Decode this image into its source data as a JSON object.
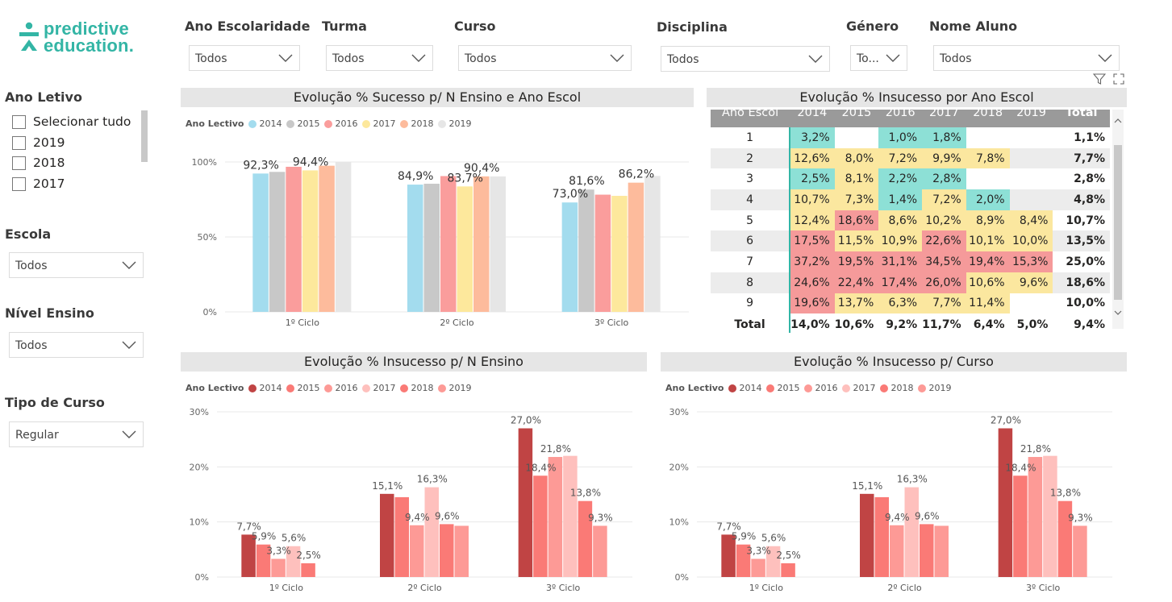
{
  "logo": {
    "line1": "predictive",
    "line2": "education."
  },
  "top_filters": [
    {
      "label": "Ano Escolaridade",
      "value": "Todos"
    },
    {
      "label": "Turma",
      "value": "Todos"
    },
    {
      "label": "Curso",
      "value": "Todos"
    },
    {
      "label": "Disciplina",
      "value": "Todos"
    },
    {
      "label": "Género",
      "value": "To..."
    },
    {
      "label": "Nome Aluno",
      "value": "Todos"
    }
  ],
  "sidebar": {
    "ano_letivo": {
      "label": "Ano Letivo",
      "items": [
        "Selecionar tudo",
        "2019",
        "2018",
        "2017"
      ]
    },
    "escola": {
      "label": "Escola",
      "value": "Todos"
    },
    "nivel_ensino": {
      "label": "Nível Ensino",
      "value": "Todos"
    },
    "tipo_curso": {
      "label": "Tipo de Curso",
      "value": "Regular"
    }
  },
  "colors": {
    "accent": "#33b5a5",
    "success_palette": [
      "#a3dcee",
      "#c8c8c8",
      "#fa9d9c",
      "#fde89c",
      "#fdbb9c",
      "#e6e6e6"
    ],
    "insucesso_palette": [
      "#c04444",
      "#fa7a76",
      "#fd9a96",
      "#fec0bd",
      "#fa7a76",
      "#fd9a96"
    ],
    "cell_low": "#8de0d6",
    "cell_mid": "#fbe79f",
    "cell_high": "#f59a9a"
  },
  "chart_sucesso": {
    "title": "Evolução % Sucesso p/ N Ensino e Ano Escol",
    "legend_title": "Ano Lectivo",
    "chart_data": {
      "type": "bar",
      "categories": [
        "1º Ciclo",
        "2º Ciclo",
        "3º Ciclo"
      ],
      "series": [
        {
          "name": "2014",
          "values": [
            92.3,
            84.9,
            73.0
          ]
        },
        {
          "name": "2015",
          "values": [
            93.4,
            85.5,
            81.6
          ]
        },
        {
          "name": "2016",
          "values": [
            96.8,
            90.6,
            78.2
          ]
        },
        {
          "name": "2017",
          "values": [
            94.4,
            83.7,
            77.4
          ]
        },
        {
          "name": "2018",
          "values": [
            97.5,
            90.4,
            86.2
          ]
        },
        {
          "name": "2019",
          "values": [
            100.0,
            90.4,
            90.7
          ]
        }
      ],
      "labels": [
        {
          "cat": 0,
          "series": 0,
          "text": "92,3%"
        },
        {
          "cat": 0,
          "series": 3,
          "text": "94,4%"
        },
        {
          "cat": 1,
          "series": 0,
          "text": "84,9%"
        },
        {
          "cat": 1,
          "series": 3,
          "text": "83,7%"
        },
        {
          "cat": 1,
          "series": 4,
          "text": "90,4%"
        },
        {
          "cat": 2,
          "series": 0,
          "text": "73,0%"
        },
        {
          "cat": 2,
          "series": 1,
          "text": "81,6%"
        },
        {
          "cat": 2,
          "series": 4,
          "text": "86,2%"
        }
      ],
      "yticks": [
        "0%",
        "50%",
        "100%"
      ],
      "ylim": [
        0,
        100
      ]
    }
  },
  "matrix": {
    "title": "Evolução % Insucesso por Ano Escol",
    "headers": [
      "Ano Escol",
      "2014",
      "2015",
      "2016",
      "2017",
      "2018",
      "2019",
      "Total"
    ],
    "rows": [
      {
        "label": "1",
        "cells": [
          "3,2%",
          "",
          "1,0%",
          "1,8%",
          "",
          ""
        ],
        "total": "1,1%"
      },
      {
        "label": "2",
        "cells": [
          "12,6%",
          "8,0%",
          "7,2%",
          "9,9%",
          "7,8%",
          ""
        ],
        "total": "7,7%"
      },
      {
        "label": "3",
        "cells": [
          "2,5%",
          "8,1%",
          "2,2%",
          "2,8%",
          "",
          ""
        ],
        "total": "2,8%"
      },
      {
        "label": "4",
        "cells": [
          "10,7%",
          "7,3%",
          "1,4%",
          "7,2%",
          "2,0%",
          ""
        ],
        "total": "4,8%"
      },
      {
        "label": "5",
        "cells": [
          "12,4%",
          "18,6%",
          "8,6%",
          "10,2%",
          "8,9%",
          "8,4%"
        ],
        "total": "10,7%"
      },
      {
        "label": "6",
        "cells": [
          "17,5%",
          "11,5%",
          "10,9%",
          "22,6%",
          "10,1%",
          "10,0%"
        ],
        "total": "13,5%"
      },
      {
        "label": "7",
        "cells": [
          "37,2%",
          "19,5%",
          "31,1%",
          "34,5%",
          "19,4%",
          "15,3%"
        ],
        "total": "25,0%"
      },
      {
        "label": "8",
        "cells": [
          "24,6%",
          "22,4%",
          "17,4%",
          "26,0%",
          "10,6%",
          "9,6%"
        ],
        "total": "18,6%"
      },
      {
        "label": "9",
        "cells": [
          "19,6%",
          "13,7%",
          "6,3%",
          "7,7%",
          "11,4%",
          ""
        ],
        "total": "10,0%"
      }
    ],
    "total_row": {
      "label": "Total",
      "cells": [
        "14,0%",
        "10,6%",
        "9,2%",
        "11,7%",
        "6,4%",
        "5,0%"
      ],
      "total": "9,4%"
    },
    "cell_colors": [
      [
        "low",
        "",
        "low",
        "low",
        "",
        ""
      ],
      [
        "mid",
        "mid",
        "mid",
        "mid",
        "mid",
        ""
      ],
      [
        "low",
        "mid",
        "low",
        "low",
        "",
        ""
      ],
      [
        "mid",
        "mid",
        "low",
        "mid",
        "low",
        ""
      ],
      [
        "mid",
        "high",
        "mid",
        "mid",
        "mid",
        "mid"
      ],
      [
        "high",
        "mid",
        "mid",
        "high",
        "mid",
        "mid"
      ],
      [
        "high",
        "high",
        "high",
        "high",
        "high",
        "high"
      ],
      [
        "high",
        "high",
        "high",
        "high",
        "mid",
        "mid"
      ],
      [
        "high",
        "mid",
        "mid",
        "mid",
        "mid",
        ""
      ]
    ]
  },
  "chart_insucesso_nensino": {
    "title": "Evolução % Insucesso p/ N Ensino",
    "legend_title": "Ano Lectivo",
    "chart_data": {
      "type": "bar",
      "categories": [
        "1º Ciclo",
        "2º Ciclo",
        "3º Ciclo"
      ],
      "series": [
        {
          "name": "2014",
          "values": [
            7.7,
            15.1,
            27.0
          ]
        },
        {
          "name": "2015",
          "values": [
            5.9,
            14.5,
            18.4
          ]
        },
        {
          "name": "2016",
          "values": [
            3.3,
            9.4,
            21.8
          ]
        },
        {
          "name": "2017",
          "values": [
            5.6,
            16.3,
            22.0
          ]
        },
        {
          "name": "2018",
          "values": [
            2.5,
            9.6,
            13.8
          ]
        },
        {
          "name": "2019",
          "values": [
            0,
            9.3,
            9.3
          ]
        }
      ],
      "labels": [
        [
          "7,7%",
          "5,9%",
          "3,3%",
          "5,6%",
          "2,5%",
          ""
        ],
        [
          "15,1%",
          "",
          "9,4%",
          "16,3%",
          "9,6%",
          ""
        ],
        [
          "27,0%",
          "18,4%",
          "21,8%",
          "",
          "13,8%",
          "9,3%"
        ]
      ],
      "yticks": [
        "0%",
        "10%",
        "20%",
        "30%"
      ],
      "ylim": [
        0,
        30
      ]
    }
  },
  "chart_insucesso_curso": {
    "title": "Evolução % Insucesso p/ Curso",
    "legend_title": "Ano Lectivo",
    "chart_data": {
      "type": "bar",
      "categories": [
        "1º Ciclo",
        "2º Ciclo",
        "3º Ciclo"
      ],
      "series": [
        {
          "name": "2014",
          "values": [
            7.7,
            15.1,
            27.0
          ]
        },
        {
          "name": "2015",
          "values": [
            5.9,
            14.5,
            18.4
          ]
        },
        {
          "name": "2016",
          "values": [
            3.3,
            9.4,
            21.8
          ]
        },
        {
          "name": "2017",
          "values": [
            5.6,
            16.3,
            22.0
          ]
        },
        {
          "name": "2018",
          "values": [
            2.5,
            9.6,
            13.8
          ]
        },
        {
          "name": "2019",
          "values": [
            0,
            9.3,
            9.3
          ]
        }
      ],
      "labels": [
        [
          "7,7%",
          "5,9%",
          "3,3%",
          "5,6%",
          "2,5%",
          ""
        ],
        [
          "15,1%",
          "",
          "9,4%",
          "16,3%",
          "9,6%",
          ""
        ],
        [
          "27,0%",
          "18,4%",
          "21,8%",
          "",
          "13,8%",
          "9,3%"
        ]
      ],
      "yticks": [
        "0%",
        "10%",
        "20%",
        "30%"
      ],
      "ylim": [
        0,
        30
      ]
    }
  }
}
